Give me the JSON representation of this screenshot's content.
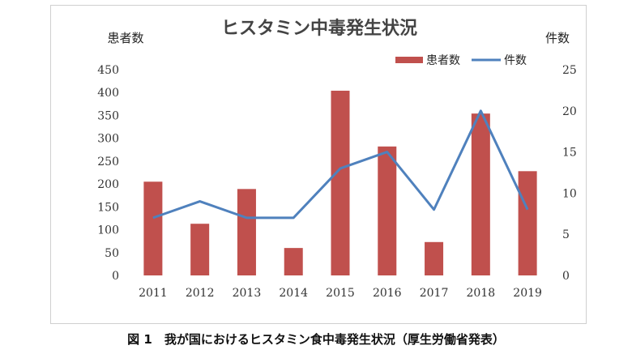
{
  "chart_data": {
    "type": "bar",
    "title": "ヒスタミン中毒発生状況",
    "ylabel_left": "患者数",
    "ylabel_right": "件数",
    "categories": [
      "2011",
      "2012",
      "2013",
      "2014",
      "2015",
      "2016",
      "2017",
      "2018",
      "2019"
    ],
    "ylim_left": [
      0,
      450
    ],
    "ylim_right": [
      0,
      25
    ],
    "yticks_left": [
      "0",
      "50",
      "100",
      "150",
      "200",
      "250",
      "300",
      "350",
      "400",
      "450"
    ],
    "yticks_right": [
      "0",
      "5",
      "10",
      "15",
      "20",
      "25"
    ],
    "legend_position": "top-right",
    "series": [
      {
        "name": "患者数",
        "type": "bar",
        "axis": "left",
        "color": "#c0504d",
        "values": [
          205,
          113,
          189,
          60,
          404,
          282,
          73,
          354,
          228
        ]
      },
      {
        "name": "件数",
        "type": "line",
        "axis": "right",
        "color": "#4f81bd",
        "values": [
          7,
          9,
          7,
          7,
          13,
          15,
          8,
          20,
          8
        ]
      }
    ],
    "grid": false
  },
  "caption": "図 1　我が国におけるヒスタミン食中毒発生状況（厚生労働省発表）"
}
